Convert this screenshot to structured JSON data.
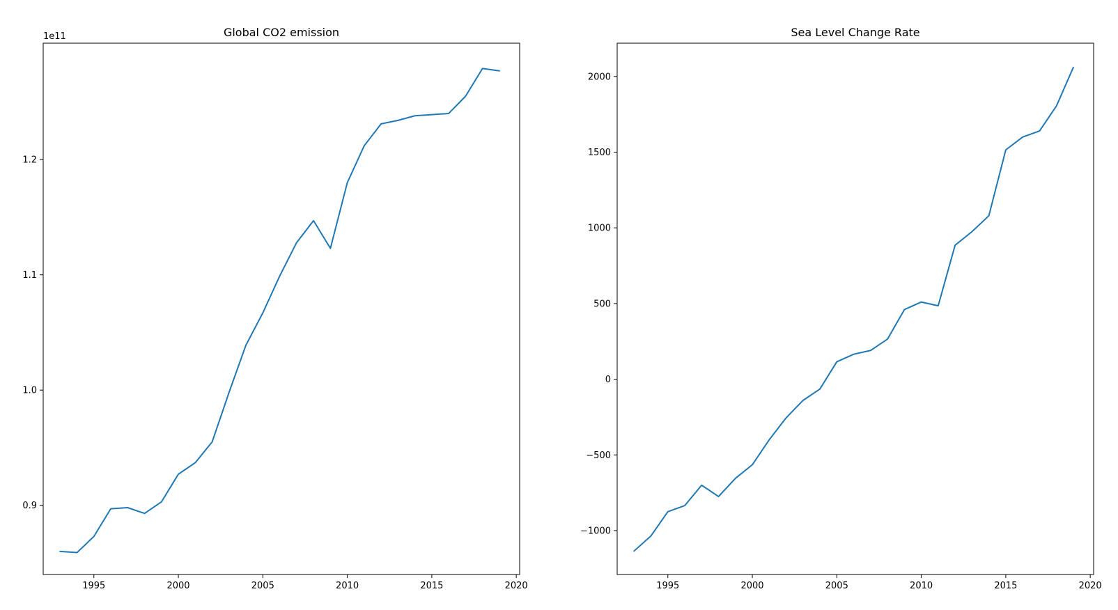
{
  "figure": {
    "line_color": "#1f77b4"
  },
  "chart_data": [
    {
      "type": "line",
      "title": "Global CO2 emission",
      "xlabel": "",
      "ylabel": "",
      "y_offset_label": "1e11",
      "xlim": [
        1992,
        2020.2
      ],
      "ylim": [
        0.84,
        1.301
      ],
      "x_ticks": [
        1995,
        2000,
        2005,
        2010,
        2015,
        2020
      ],
      "x_tick_labels": [
        "1995",
        "2000",
        "2005",
        "2010",
        "2015",
        "2020"
      ],
      "y_ticks": [
        0.9,
        1.0,
        1.1,
        1.2
      ],
      "y_tick_labels": [
        "0.9",
        "1.0",
        "1.1",
        "1.2"
      ],
      "grid": false,
      "x": [
        1993,
        1994,
        1995,
        1996,
        1997,
        1998,
        1999,
        2000,
        2001,
        2002,
        2003,
        2004,
        2005,
        2006,
        2007,
        2008,
        2009,
        2010,
        2011,
        2012,
        2013,
        2014,
        2015,
        2016,
        2017,
        2018,
        2019
      ],
      "series": [
        {
          "values": [
            0.86,
            0.859,
            0.873,
            0.897,
            0.898,
            0.893,
            0.903,
            0.927,
            0.937,
            0.955,
            0.998,
            1.039,
            1.067,
            1.099,
            1.128,
            1.147,
            1.123,
            1.18,
            1.212,
            1.231,
            1.234,
            1.238,
            1.239,
            1.24,
            1.255,
            1.279,
            1.277
          ]
        }
      ]
    },
    {
      "type": "line",
      "title": "Sea Level Change Rate",
      "xlabel": "",
      "ylabel": "",
      "y_offset_label": "",
      "xlim": [
        1992,
        2020.2
      ],
      "ylim": [
        -1290,
        2220
      ],
      "x_ticks": [
        1995,
        2000,
        2005,
        2010,
        2015,
        2020
      ],
      "x_tick_labels": [
        "1995",
        "2000",
        "2005",
        "2010",
        "2015",
        "2020"
      ],
      "y_ticks": [
        -1000,
        -500,
        0,
        500,
        1000,
        1500,
        2000
      ],
      "y_tick_labels": [
        "−1000",
        "−500",
        "0",
        "500",
        "1000",
        "1500",
        "2000"
      ],
      "grid": false,
      "x": [
        1993,
        1994,
        1995,
        1996,
        1997,
        1998,
        1999,
        2000,
        2001,
        2002,
        2003,
        2004,
        2005,
        2006,
        2007,
        2008,
        2009,
        2010,
        2011,
        2012,
        2013,
        2014,
        2015,
        2016,
        2017,
        2018,
        2019
      ],
      "series": [
        {
          "values": [
            -1135,
            -1035,
            -875,
            -835,
            -700,
            -775,
            -655,
            -565,
            -400,
            -255,
            -140,
            -65,
            115,
            165,
            190,
            265,
            460,
            510,
            485,
            885,
            975,
            1080,
            1515,
            1600,
            1640,
            1805,
            2060
          ]
        }
      ]
    }
  ]
}
